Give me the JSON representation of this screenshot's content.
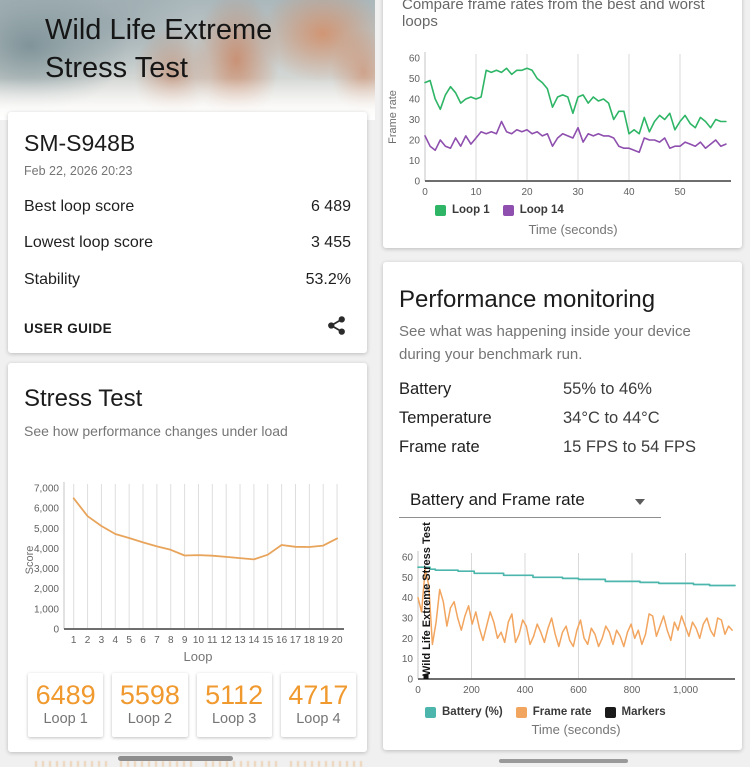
{
  "header": {
    "title_line1": "Wild Life Extreme",
    "title_line2": "Stress Test"
  },
  "result_card": {
    "device": "SM-S948B",
    "date": "Feb 22, 2026 20:23",
    "rows": [
      {
        "label": "Best loop score",
        "value": "6 489"
      },
      {
        "label": "Lowest loop score",
        "value": "3 455"
      },
      {
        "label": "Stability",
        "value": "53.2%"
      }
    ],
    "user_guide_label": "USER GUIDE",
    "share_icon": "share-icon"
  },
  "stress_card": {
    "title": "Stress Test",
    "subtitle": "See how performance changes under load",
    "scores": [
      {
        "value": "6489",
        "label": "Loop 1"
      },
      {
        "value": "5598",
        "label": "Loop 2"
      },
      {
        "value": "5112",
        "label": "Loop 3"
      },
      {
        "value": "4717",
        "label": "Loop 4"
      }
    ]
  },
  "compare_card": {
    "caption": "Compare frame rates from the best and worst loops",
    "legend": [
      {
        "label": "Loop 1",
        "color": "#2eb566"
      },
      {
        "label": "Loop 14",
        "color": "#8e4fae"
      }
    ]
  },
  "perf_card": {
    "title": "Performance monitoring",
    "subtitle": "See what was happening inside your device during your benchmark run.",
    "rows": [
      {
        "label": "Battery",
        "value": "55% to 46%"
      },
      {
        "label": "Temperature",
        "value": "34°C to 44°C"
      },
      {
        "label": "Frame rate",
        "value": "15 FPS to 54 FPS"
      }
    ],
    "dropdown": {
      "value": "Battery and Frame rate"
    },
    "legend": [
      {
        "label": "Battery (%)",
        "color": "#4db6ac"
      },
      {
        "label": "Frame rate",
        "color": "#f2a55f"
      },
      {
        "label": "Markers",
        "color": "#1a1a1a"
      }
    ]
  },
  "colors": {
    "accent_orange": "#f0992e",
    "green": "#2eb566",
    "purple": "#8e4fae",
    "teal": "#4db6ac"
  },
  "chart_data": [
    {
      "name": "score-vs-loop",
      "type": "line",
      "xlabel": "Loop",
      "ylabel": "Score",
      "xlim": [
        0.3,
        20.5
      ],
      "ylim": [
        0,
        7000
      ],
      "grid": true,
      "grid_color": "#dedede",
      "plot": {
        "l": 46,
        "t": 8,
        "r": 326,
        "b": 149
      },
      "xticks": [
        {
          "v": 1,
          "t": "1",
          "g": 1
        },
        {
          "v": 2,
          "t": "2",
          "g": 1
        },
        {
          "v": 3,
          "t": "3",
          "g": 1
        },
        {
          "v": 4,
          "t": "4",
          "g": 1
        },
        {
          "v": 5,
          "t": "5",
          "g": 1
        },
        {
          "v": 6,
          "t": "6",
          "g": 1
        },
        {
          "v": 7,
          "t": "7",
          "g": 1
        },
        {
          "v": 8,
          "t": "8",
          "g": 1
        },
        {
          "v": 9,
          "t": "9",
          "g": 1
        },
        {
          "v": 10,
          "t": "10",
          "g": 1
        },
        {
          "v": 11,
          "t": "11",
          "g": 1
        },
        {
          "v": 12,
          "t": "12",
          "g": 1
        },
        {
          "v": 13,
          "t": "13",
          "g": 1
        },
        {
          "v": 14,
          "t": "14",
          "g": 1
        },
        {
          "v": 15,
          "t": "15",
          "g": 1
        },
        {
          "v": 16,
          "t": "16",
          "g": 1
        },
        {
          "v": 17,
          "t": "17",
          "g": 1
        },
        {
          "v": 18,
          "t": "18",
          "g": 1
        },
        {
          "v": 19,
          "t": "19",
          "g": 1
        },
        {
          "v": 20,
          "t": "20",
          "g": 1
        }
      ],
      "yticks": [
        {
          "v": 0,
          "t": "0"
        },
        {
          "v": 1000,
          "t": "1,000"
        },
        {
          "v": 2000,
          "t": "2,000"
        },
        {
          "v": 3000,
          "t": "3,000"
        },
        {
          "v": 4000,
          "t": "4,000"
        },
        {
          "v": 5000,
          "t": "5,000"
        },
        {
          "v": 6000,
          "t": "6,000"
        },
        {
          "v": 7000,
          "t": "7,000"
        }
      ],
      "series": [
        {
          "name": "Score",
          "color": "#e8a45b",
          "w": 1.8,
          "x0": 1,
          "dx": 1,
          "values": [
            6489,
            5598,
            5112,
            4717,
            4520,
            4300,
            4100,
            3930,
            3650,
            3670,
            3640,
            3580,
            3520,
            3455,
            3690,
            4170,
            4080,
            4070,
            4140,
            4500
          ]
        }
      ]
    },
    {
      "name": "frame-rate-best-worst",
      "type": "line",
      "xlabel": "Time (seconds)",
      "ylabel": "Frame rate",
      "xlim": [
        0,
        60
      ],
      "ylim": [
        0,
        60
      ],
      "grid": true,
      "grid_color": "#d9d9d9",
      "plot": {
        "l": 34,
        "t": 18,
        "r": 340,
        "b": 141
      },
      "xticks": [
        {
          "v": 0,
          "t": "0"
        },
        {
          "v": 10,
          "t": "10",
          "g": 1
        },
        {
          "v": 20,
          "t": "20",
          "g": 1
        },
        {
          "v": 30,
          "t": "30",
          "g": 1
        },
        {
          "v": 40,
          "t": "40",
          "g": 1
        },
        {
          "v": 50,
          "t": "50",
          "g": 1
        }
      ],
      "yticks": [
        {
          "v": 0,
          "t": "0"
        },
        {
          "v": 10,
          "t": "10"
        },
        {
          "v": 20,
          "t": "20"
        },
        {
          "v": 30,
          "t": "30"
        },
        {
          "v": 40,
          "t": "40"
        },
        {
          "v": 50,
          "t": "50"
        },
        {
          "v": 60,
          "t": "60"
        }
      ],
      "series": [
        {
          "name": "Loop 1",
          "color": "#2eb566",
          "w": 1.6,
          "x0": 0,
          "dx": 1,
          "values": [
            48,
            49,
            40,
            35,
            42,
            46,
            43,
            38,
            40,
            41,
            40,
            41,
            54,
            53,
            54,
            53,
            55,
            52,
            54,
            54,
            55,
            54,
            50,
            48,
            45,
            36,
            41,
            42,
            41,
            33,
            41,
            42,
            38,
            41,
            39,
            40,
            38,
            30,
            34,
            34,
            23,
            25,
            23,
            31,
            24,
            29,
            32,
            30,
            33,
            25,
            29,
            32,
            28,
            26,
            31,
            29,
            26,
            30,
            29,
            29
          ]
        },
        {
          "name": "Loop 14",
          "color": "#8e4fae",
          "w": 1.6,
          "x0": 0,
          "dx": 1,
          "values": [
            22,
            17,
            15,
            20,
            17,
            16,
            21,
            17,
            22,
            18,
            21,
            24,
            23,
            24,
            23,
            29,
            24,
            23,
            25,
            24,
            25,
            23,
            24,
            22,
            23,
            17,
            21,
            23,
            22,
            21,
            26,
            19,
            23,
            22,
            23,
            22,
            22,
            21,
            17,
            16,
            16,
            15,
            14,
            21,
            20,
            20,
            19,
            21,
            16,
            17,
            17,
            19,
            18,
            17,
            19,
            16,
            18,
            20,
            17,
            18
          ]
        }
      ]
    },
    {
      "name": "battery-and-frame-rate",
      "type": "line",
      "xlabel": "Time (seconds)",
      "ylabel": "",
      "xlim": [
        0,
        1185
      ],
      "ylim": [
        0,
        60
      ],
      "grid": true,
      "grid_color": "#d9d9d9",
      "plot": {
        "l": 27,
        "t": 15,
        "r": 344,
        "b": 137
      },
      "marker": {
        "x": 30,
        "label": "Wild Life Extreme Stress Test"
      },
      "xticks": [
        {
          "v": 0,
          "t": "0"
        },
        {
          "v": 200,
          "t": "200",
          "g": 1
        },
        {
          "v": 400,
          "t": "400",
          "g": 1
        },
        {
          "v": 600,
          "t": "600",
          "g": 1
        },
        {
          "v": 800,
          "t": "800",
          "g": 1
        },
        {
          "v": 1000,
          "t": "1,000",
          "g": 1
        }
      ],
      "yticks": [
        {
          "v": 0,
          "t": "0"
        },
        {
          "v": 10,
          "t": "10"
        },
        {
          "v": 20,
          "t": "20"
        },
        {
          "v": 30,
          "t": "30"
        },
        {
          "v": 40,
          "t": "40"
        },
        {
          "v": 50,
          "t": "50"
        },
        {
          "v": 60,
          "t": "60"
        }
      ],
      "series": [
        {
          "name": "Battery (%)",
          "color": "#4db6ac",
          "w": 1.7,
          "points": [
            [
              0,
              55
            ],
            [
              45,
              55
            ],
            [
              45,
              54
            ],
            [
              65,
              54
            ],
            [
              65,
              53.5
            ],
            [
              150,
              53.5
            ],
            [
              150,
              53
            ],
            [
              210,
              53
            ],
            [
              210,
              52
            ],
            [
              320,
              52
            ],
            [
              320,
              51
            ],
            [
              430,
              51
            ],
            [
              430,
              50
            ],
            [
              540,
              50
            ],
            [
              540,
              49.5
            ],
            [
              600,
              49.5
            ],
            [
              600,
              49
            ],
            [
              700,
              49
            ],
            [
              700,
              48
            ],
            [
              830,
              48
            ],
            [
              830,
              47.5
            ],
            [
              900,
              47.5
            ],
            [
              900,
              47
            ],
            [
              1030,
              47
            ],
            [
              1030,
              46.5
            ],
            [
              1090,
              46.5
            ],
            [
              1090,
              46
            ],
            [
              1185,
              46
            ]
          ]
        },
        {
          "name": "Frame rate",
          "color": "#f2a55f",
          "w": 1.5,
          "x0": 0,
          "dx": 13.5,
          "values": [
            40,
            33,
            54,
            46,
            17,
            28,
            44,
            38,
            26,
            35,
            38,
            30,
            24,
            31,
            36,
            27,
            33,
            25,
            19,
            26,
            33,
            28,
            20,
            23,
            18,
            28,
            32,
            18,
            22,
            29,
            26,
            17,
            21,
            27,
            23,
            18,
            25,
            30,
            22,
            16,
            23,
            26,
            19,
            16,
            24,
            29,
            20,
            17,
            25,
            22,
            16,
            20,
            26,
            23,
            17,
            24,
            21,
            16,
            23,
            27,
            20,
            24,
            17,
            22,
            32,
            31,
            21,
            26,
            31,
            24,
            19,
            28,
            24,
            31,
            26,
            21,
            28,
            25,
            20,
            27,
            30,
            24,
            21,
            30,
            29,
            22,
            26,
            24
          ]
        }
      ]
    }
  ]
}
